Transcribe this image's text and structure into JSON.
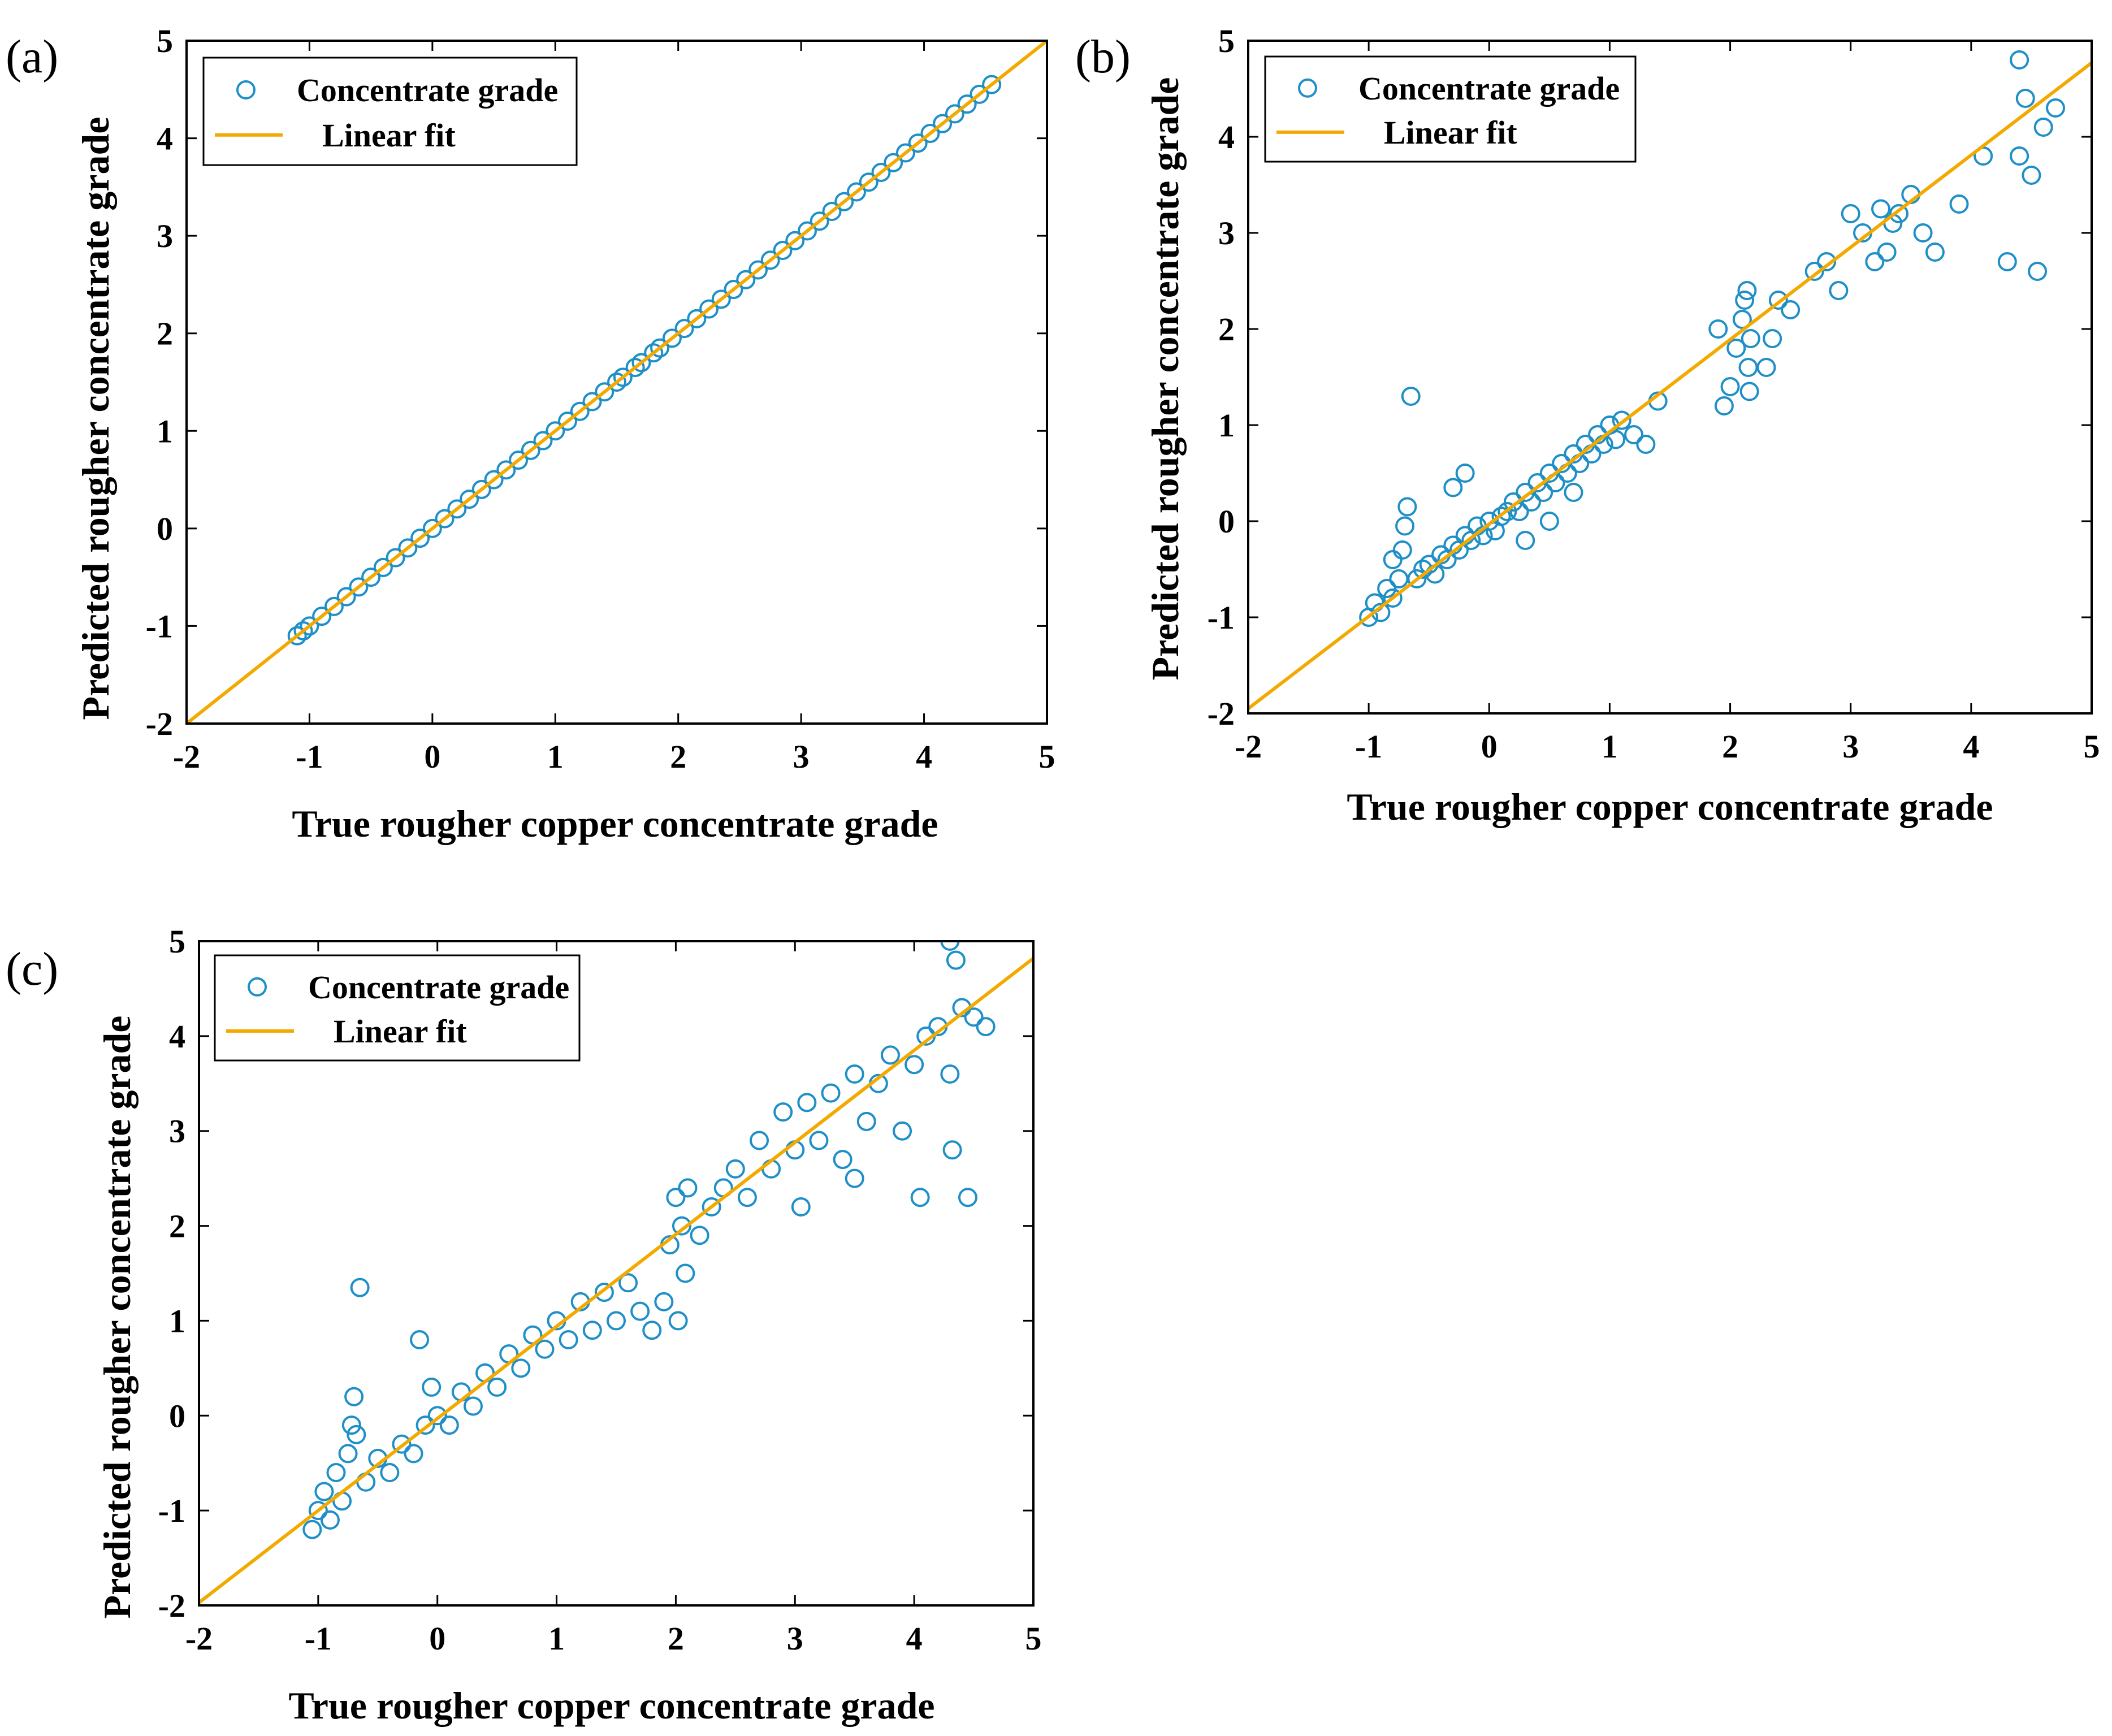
{
  "colors": {
    "marker": "#1f8fc8",
    "fit_line": "#f2a900",
    "axis": "#000000",
    "background": "#ffffff"
  },
  "chart_data": [
    {
      "type": "scatter",
      "panel_label": "(a)",
      "xlabel": "True rougher copper concentrate grade",
      "ylabel": "Predicted rougher concentrate grade",
      "xlim": [
        -2,
        5
      ],
      "ylim": [
        -2,
        5
      ],
      "xticks": [
        "-2",
        "-1",
        "0",
        "1",
        "2",
        "3",
        "4",
        "5"
      ],
      "yticks": [
        "-2",
        "-1",
        "0",
        "1",
        "2",
        "3",
        "4",
        "5"
      ],
      "grid": false,
      "legend_position": "top-left",
      "legend": [
        "Concentrate grade",
        "Linear fit"
      ],
      "series": [
        {
          "name": "Concentrate grade",
          "kind": "markers",
          "points": [
            [
              -1.1,
              -1.1
            ],
            [
              -1.05,
              -1.05
            ],
            [
              -1.0,
              -1.0
            ],
            [
              -0.9,
              -0.9
            ],
            [
              -0.8,
              -0.8
            ],
            [
              -0.7,
              -0.7
            ],
            [
              -0.6,
              -0.6
            ],
            [
              -0.5,
              -0.5
            ],
            [
              -0.4,
              -0.4
            ],
            [
              -0.3,
              -0.3
            ],
            [
              -0.2,
              -0.2
            ],
            [
              -0.1,
              -0.1
            ],
            [
              0.0,
              0.0
            ],
            [
              0.1,
              0.1
            ],
            [
              0.2,
              0.2
            ],
            [
              0.3,
              0.3
            ],
            [
              0.4,
              0.4
            ],
            [
              0.5,
              0.5
            ],
            [
              0.6,
              0.6
            ],
            [
              0.7,
              0.7
            ],
            [
              0.8,
              0.8
            ],
            [
              0.9,
              0.9
            ],
            [
              1.0,
              1.0
            ],
            [
              1.1,
              1.1
            ],
            [
              1.2,
              1.2
            ],
            [
              1.3,
              1.3
            ],
            [
              1.4,
              1.4
            ],
            [
              1.5,
              1.5
            ],
            [
              1.55,
              1.55
            ],
            [
              1.65,
              1.65
            ],
            [
              1.7,
              1.7
            ],
            [
              1.8,
              1.8
            ],
            [
              1.85,
              1.85
            ],
            [
              1.95,
              1.95
            ],
            [
              2.05,
              2.05
            ],
            [
              2.15,
              2.15
            ],
            [
              2.25,
              2.25
            ],
            [
              2.35,
              2.35
            ],
            [
              2.45,
              2.45
            ],
            [
              2.55,
              2.55
            ],
            [
              2.65,
              2.65
            ],
            [
              2.75,
              2.75
            ],
            [
              2.85,
              2.85
            ],
            [
              2.95,
              2.95
            ],
            [
              3.05,
              3.05
            ],
            [
              3.15,
              3.15
            ],
            [
              3.25,
              3.25
            ],
            [
              3.35,
              3.35
            ],
            [
              3.45,
              3.45
            ],
            [
              3.55,
              3.55
            ],
            [
              3.65,
              3.65
            ],
            [
              3.75,
              3.75
            ],
            [
              3.85,
              3.85
            ],
            [
              3.95,
              3.95
            ],
            [
              4.05,
              4.05
            ],
            [
              4.15,
              4.15
            ],
            [
              4.25,
              4.25
            ],
            [
              4.35,
              4.35
            ],
            [
              4.45,
              4.45
            ],
            [
              4.55,
              4.55
            ]
          ]
        },
        {
          "name": "Linear fit",
          "kind": "line",
          "slope": 1.0,
          "intercept": 0.0
        }
      ]
    },
    {
      "type": "scatter",
      "panel_label": "(b)",
      "xlabel": "True rougher copper concentrate grade",
      "ylabel": "Predicted rougher concentrate grade",
      "xlim": [
        -2,
        5
      ],
      "ylim": [
        -2,
        5
      ],
      "xticks": [
        "-2",
        "-1",
        "0",
        "1",
        "2",
        "3",
        "4",
        "5"
      ],
      "yticks": [
        "-2",
        "-1",
        "0",
        "1",
        "2",
        "3",
        "4",
        "5"
      ],
      "grid": false,
      "legend_position": "top-left",
      "legend": [
        "Concentrate grade",
        "Linear fit"
      ],
      "series": [
        {
          "name": "Concentrate grade",
          "kind": "markers",
          "points": [
            [
              -1.0,
              -1.0
            ],
            [
              -0.95,
              -0.85
            ],
            [
              -0.9,
              -0.95
            ],
            [
              -0.85,
              -0.7
            ],
            [
              -0.8,
              -0.8
            ],
            [
              -0.75,
              -0.6
            ],
            [
              -0.72,
              -0.3
            ],
            [
              -0.7,
              -0.05
            ],
            [
              -0.68,
              0.15
            ],
            [
              -0.65,
              1.3
            ],
            [
              -0.6,
              -0.6
            ],
            [
              -0.55,
              -0.5
            ],
            [
              -0.5,
              -0.45
            ],
            [
              -0.45,
              -0.55
            ],
            [
              -0.4,
              -0.35
            ],
            [
              -0.35,
              -0.4
            ],
            [
              -0.3,
              -0.25
            ],
            [
              -0.25,
              -0.3
            ],
            [
              -0.2,
              -0.15
            ],
            [
              -0.15,
              -0.2
            ],
            [
              -0.1,
              -0.05
            ],
            [
              -0.05,
              -0.15
            ],
            [
              0.0,
              0.0
            ],
            [
              0.05,
              -0.1
            ],
            [
              0.1,
              0.05
            ],
            [
              0.15,
              0.1
            ],
            [
              0.2,
              0.2
            ],
            [
              0.25,
              0.1
            ],
            [
              0.3,
              0.3
            ],
            [
              0.35,
              0.2
            ],
            [
              0.4,
              0.4
            ],
            [
              0.45,
              0.3
            ],
            [
              0.5,
              0.5
            ],
            [
              0.55,
              0.4
            ],
            [
              0.6,
              0.6
            ],
            [
              0.65,
              0.5
            ],
            [
              0.7,
              0.7
            ],
            [
              0.75,
              0.6
            ],
            [
              0.8,
              0.8
            ],
            [
              0.85,
              0.7
            ],
            [
              0.9,
              0.9
            ],
            [
              0.95,
              0.8
            ],
            [
              1.0,
              1.0
            ],
            [
              1.05,
              0.85
            ],
            [
              1.1,
              1.05
            ],
            [
              1.2,
              0.9
            ],
            [
              1.3,
              0.8
            ],
            [
              1.4,
              1.25
            ],
            [
              -0.8,
              -0.4
            ],
            [
              0.3,
              -0.2
            ],
            [
              0.5,
              0.0
            ],
            [
              0.7,
              0.3
            ],
            [
              -0.3,
              0.35
            ],
            [
              -0.2,
              0.5
            ],
            [
              1.9,
              2.0
            ],
            [
              1.95,
              1.2
            ],
            [
              2.0,
              1.4
            ],
            [
              2.05,
              1.8
            ],
            [
              2.1,
              2.1
            ],
            [
              2.12,
              2.3
            ],
            [
              2.14,
              2.4
            ],
            [
              2.15,
              1.6
            ],
            [
              2.16,
              1.35
            ],
            [
              2.17,
              1.9
            ],
            [
              2.3,
              1.6
            ],
            [
              2.35,
              1.9
            ],
            [
              2.4,
              2.3
            ],
            [
              2.5,
              2.2
            ],
            [
              2.7,
              2.6
            ],
            [
              2.8,
              2.7
            ],
            [
              2.9,
              2.4
            ],
            [
              3.0,
              3.2
            ],
            [
              3.1,
              3.0
            ],
            [
              3.2,
              2.7
            ],
            [
              3.25,
              3.25
            ],
            [
              3.3,
              2.8
            ],
            [
              3.35,
              3.1
            ],
            [
              3.4,
              3.2
            ],
            [
              3.5,
              3.4
            ],
            [
              3.6,
              3.0
            ],
            [
              3.7,
              2.8
            ],
            [
              3.9,
              3.3
            ],
            [
              4.1,
              3.8
            ],
            [
              4.3,
              2.7
            ],
            [
              4.4,
              3.8
            ],
            [
              4.45,
              4.4
            ],
            [
              4.5,
              3.6
            ],
            [
              4.55,
              2.6
            ],
            [
              4.4,
              4.8
            ],
            [
              4.6,
              4.1
            ],
            [
              4.7,
              4.3
            ]
          ]
        },
        {
          "name": "Linear fit",
          "kind": "line",
          "slope": 0.96,
          "intercept": -0.03
        }
      ]
    },
    {
      "type": "scatter",
      "panel_label": "(c)",
      "xlabel": "True rougher copper concentrate grade",
      "ylabel": "Predicted rougher concentrate grade",
      "xlim": [
        -2,
        5
      ],
      "ylim": [
        -2,
        5
      ],
      "xticks": [
        "-2",
        "-1",
        "0",
        "1",
        "2",
        "3",
        "4",
        "5"
      ],
      "yticks": [
        "-2",
        "-1",
        "0",
        "1",
        "2",
        "3",
        "4",
        "5"
      ],
      "grid": false,
      "legend_position": "top-left",
      "legend": [
        "Concentrate grade",
        "Linear fit"
      ],
      "series": [
        {
          "name": "Concentrate grade",
          "kind": "markers",
          "points": [
            [
              -1.05,
              -1.2
            ],
            [
              -1.0,
              -1.0
            ],
            [
              -0.95,
              -0.8
            ],
            [
              -0.9,
              -1.1
            ],
            [
              -0.85,
              -0.6
            ],
            [
              -0.8,
              -0.9
            ],
            [
              -0.75,
              -0.4
            ],
            [
              -0.72,
              -0.1
            ],
            [
              -0.7,
              0.2
            ],
            [
              -0.68,
              -0.2
            ],
            [
              -0.65,
              1.35
            ],
            [
              -0.6,
              -0.7
            ],
            [
              -0.5,
              -0.45
            ],
            [
              -0.4,
              -0.6
            ],
            [
              -0.3,
              -0.3
            ],
            [
              -0.2,
              -0.4
            ],
            [
              -0.15,
              0.8
            ],
            [
              -0.1,
              -0.1
            ],
            [
              -0.05,
              0.3
            ],
            [
              0.0,
              0.0
            ],
            [
              0.1,
              -0.1
            ],
            [
              0.2,
              0.25
            ],
            [
              0.3,
              0.1
            ],
            [
              0.4,
              0.45
            ],
            [
              0.5,
              0.3
            ],
            [
              0.6,
              0.65
            ],
            [
              0.7,
              0.5
            ],
            [
              0.8,
              0.85
            ],
            [
              0.9,
              0.7
            ],
            [
              1.0,
              1.0
            ],
            [
              1.1,
              0.8
            ],
            [
              1.2,
              1.2
            ],
            [
              1.3,
              0.9
            ],
            [
              1.4,
              1.3
            ],
            [
              1.5,
              1.0
            ],
            [
              1.6,
              1.4
            ],
            [
              1.7,
              1.1
            ],
            [
              1.8,
              0.9
            ],
            [
              1.9,
              1.2
            ],
            [
              1.95,
              1.8
            ],
            [
              2.0,
              2.3
            ],
            [
              2.02,
              1.0
            ],
            [
              2.05,
              2.0
            ],
            [
              2.08,
              1.5
            ],
            [
              2.1,
              2.4
            ],
            [
              2.2,
              1.9
            ],
            [
              2.3,
              2.2
            ],
            [
              2.4,
              2.4
            ],
            [
              2.5,
              2.6
            ],
            [
              2.6,
              2.3
            ],
            [
              2.7,
              2.9
            ],
            [
              2.8,
              2.6
            ],
            [
              2.9,
              3.2
            ],
            [
              3.0,
              2.8
            ],
            [
              3.05,
              2.2
            ],
            [
              3.1,
              3.3
            ],
            [
              3.2,
              2.9
            ],
            [
              3.3,
              3.4
            ],
            [
              3.4,
              2.7
            ],
            [
              3.5,
              3.6
            ],
            [
              3.6,
              3.1
            ],
            [
              3.7,
              3.5
            ],
            [
              3.8,
              3.8
            ],
            [
              3.9,
              3.0
            ],
            [
              4.0,
              3.7
            ],
            [
              4.05,
              2.3
            ],
            [
              4.1,
              4.0
            ],
            [
              4.2,
              4.1
            ],
            [
              4.3,
              3.6
            ],
            [
              4.32,
              2.8
            ],
            [
              4.35,
              4.8
            ],
            [
              4.4,
              4.3
            ],
            [
              4.45,
              2.3
            ],
            [
              4.5,
              4.2
            ],
            [
              4.6,
              4.1
            ],
            [
              4.3,
              5.0
            ],
            [
              3.5,
              2.5
            ]
          ]
        },
        {
          "name": "Linear fit",
          "kind": "line",
          "slope": 0.97,
          "intercept": -0.03
        }
      ]
    }
  ]
}
